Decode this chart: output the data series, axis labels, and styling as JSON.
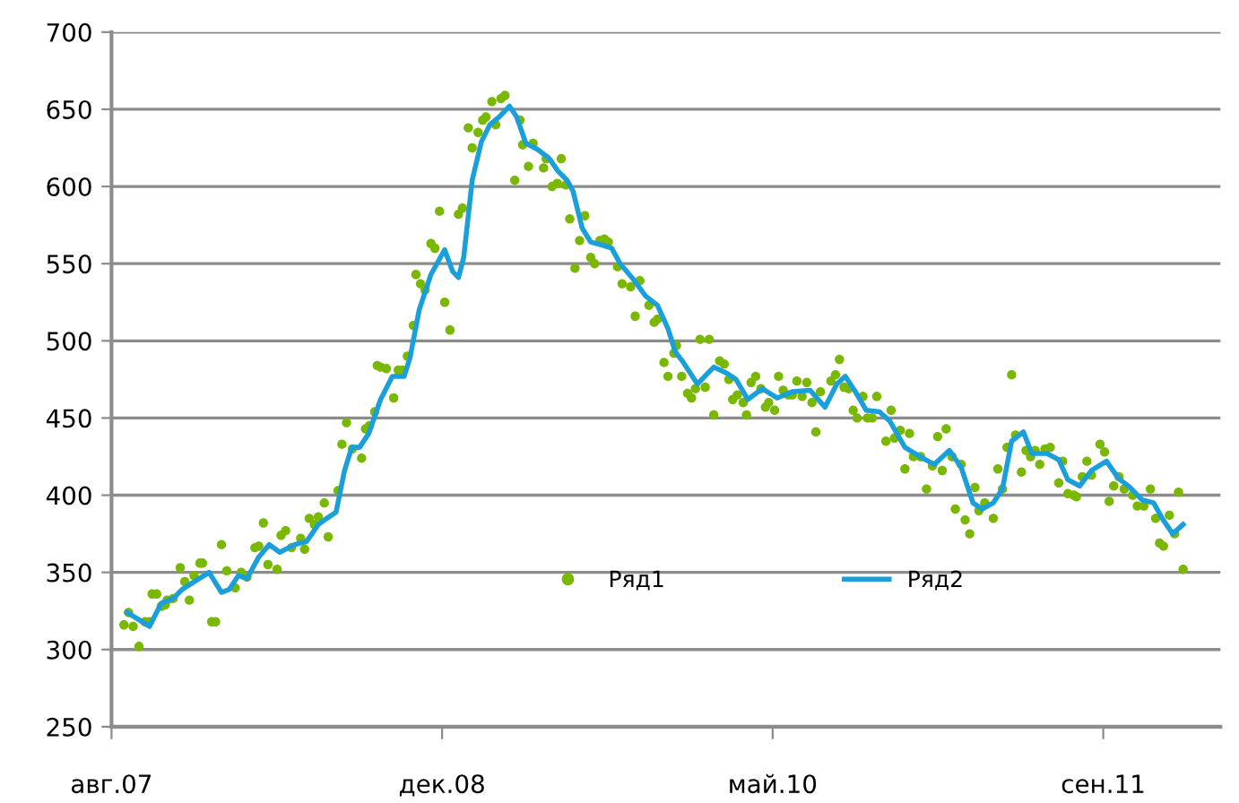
{
  "chart_data": {
    "type": "scatter",
    "xlim": [
      "2007-08-05",
      "2012-03-25"
    ],
    "xticks": [
      {
        "value": "2007-08-05",
        "label": "авг.07"
      },
      {
        "value": "2008-12-22",
        "label": "дек.08"
      },
      {
        "value": "2010-05-11",
        "label": "май.10"
      },
      {
        "value": "2011-09-28",
        "label": "сен.11"
      }
    ],
    "ylim": [
      250,
      700
    ],
    "yticks": [
      250,
      300,
      350,
      400,
      450,
      500,
      550,
      600,
      650,
      700
    ],
    "grid": "y",
    "legend": "bottom",
    "series": [
      {
        "name": "Ряд1",
        "marker": "circle",
        "color": "#7ab800",
        "x": [
          "2007-08-24",
          "2007-08-31",
          "2007-09-07",
          "2007-09-16",
          "2007-09-25",
          "2007-10-02",
          "2007-10-06",
          "2007-10-13",
          "2007-10-20",
          "2007-10-26",
          "2007-10-29",
          "2007-11-07",
          "2007-11-18",
          "2007-11-25",
          "2007-12-02",
          "2007-12-09",
          "2007-12-18",
          "2007-12-22",
          "2008-01-05",
          "2008-01-11",
          "2008-01-20",
          "2008-01-28",
          "2008-02-10",
          "2008-02-19",
          "2008-02-28",
          "2008-03-11",
          "2008-03-17",
          "2008-03-24",
          "2008-03-31",
          "2008-04-14",
          "2008-04-20",
          "2008-04-27",
          "2008-05-06",
          "2008-05-20",
          "2008-05-26",
          "2008-06-02",
          "2008-06-10",
          "2008-06-16",
          "2008-06-25",
          "2008-07-01",
          "2008-07-16",
          "2008-07-22",
          "2008-07-29",
          "2008-08-07",
          "2008-08-21",
          "2008-08-27",
          "2008-09-02",
          "2008-09-10",
          "2008-09-14",
          "2008-09-19",
          "2008-09-28",
          "2008-10-09",
          "2008-10-16",
          "2008-10-23",
          "2008-10-30",
          "2008-11-08",
          "2008-11-12",
          "2008-11-19",
          "2008-11-26",
          "2008-12-05",
          "2008-12-11",
          "2008-12-18",
          "2008-12-26",
          "2009-01-03",
          "2009-01-16",
          "2009-01-22",
          "2009-01-31",
          "2009-02-06",
          "2009-02-15",
          "2009-02-22",
          "2009-02-27",
          "2009-03-08",
          "2009-03-14",
          "2009-03-22",
          "2009-03-28",
          "2009-04-12",
          "2009-04-20",
          "2009-04-24",
          "2009-05-03",
          "2009-05-10",
          "2009-05-26",
          "2009-05-30",
          "2009-06-08",
          "2009-06-16",
          "2009-06-22",
          "2009-06-29",
          "2009-07-05",
          "2009-07-13",
          "2009-07-20",
          "2009-07-28",
          "2009-08-06",
          "2009-08-12",
          "2009-08-20",
          "2009-08-27",
          "2009-09-02",
          "2009-09-16",
          "2009-09-23",
          "2009-10-06",
          "2009-10-13",
          "2009-10-20",
          "2009-11-03",
          "2009-11-11",
          "2009-11-16",
          "2009-11-26",
          "2009-12-02",
          "2009-12-11",
          "2009-12-15",
          "2009-12-23",
          "2010-01-01",
          "2010-01-07",
          "2010-01-13",
          "2010-01-20",
          "2010-01-28",
          "2010-02-03",
          "2010-02-10",
          "2010-02-19",
          "2010-02-26",
          "2010-03-05",
          "2010-03-11",
          "2010-03-18",
          "2010-03-27",
          "2010-04-01",
          "2010-04-08",
          "2010-04-15",
          "2010-04-23",
          "2010-04-30",
          "2010-05-05",
          "2010-05-14",
          "2010-05-20",
          "2010-05-27",
          "2010-06-04",
          "2010-06-10",
          "2010-06-17",
          "2010-06-25",
          "2010-07-02",
          "2010-07-10",
          "2010-07-16",
          "2010-07-23",
          "2010-08-08",
          "2010-08-15",
          "2010-08-21",
          "2010-08-28",
          "2010-09-04",
          "2010-09-11",
          "2010-09-17",
          "2010-09-26",
          "2010-10-03",
          "2010-10-10",
          "2010-10-17",
          "2010-10-31",
          "2010-11-08",
          "2010-11-13",
          "2010-11-22",
          "2010-11-29",
          "2010-12-06",
          "2010-12-12",
          "2010-12-23",
          "2011-01-01",
          "2011-01-10",
          "2011-01-18",
          "2011-01-25",
          "2011-01-31",
          "2011-02-09",
          "2011-02-14",
          "2011-02-23",
          "2011-03-01",
          "2011-03-08",
          "2011-03-16",
          "2011-03-22",
          "2011-03-31",
          "2011-04-13",
          "2011-04-20",
          "2011-04-27",
          "2011-05-04",
          "2011-05-11",
          "2011-05-17",
          "2011-05-26",
          "2011-06-02",
          "2011-06-09",
          "2011-06-16",
          "2011-06-23",
          "2011-07-01",
          "2011-07-09",
          "2011-07-22",
          "2011-07-28",
          "2011-08-05",
          "2011-08-14",
          "2011-08-18",
          "2011-08-27",
          "2011-09-03",
          "2011-09-10",
          "2011-09-23",
          "2011-09-30",
          "2011-10-07",
          "2011-10-14",
          "2011-10-22",
          "2011-10-30",
          "2011-11-12",
          "2011-11-19",
          "2011-11-29",
          "2011-12-09",
          "2011-12-17",
          "2011-12-23",
          "2011-12-29",
          "2012-01-07",
          "2012-01-15",
          "2012-01-21",
          "2012-01-28"
        ],
        "values": [
          316,
          324,
          315,
          302,
          318,
          318,
          336,
          336,
          328,
          329,
          332,
          333,
          353,
          344,
          332,
          348,
          356,
          356,
          318,
          318,
          368,
          351,
          340,
          350,
          347,
          366,
          367,
          382,
          355,
          352,
          374,
          377,
          366,
          372,
          365,
          385,
          381,
          386,
          395,
          373,
          403,
          433,
          447,
          430,
          424,
          443,
          445,
          454,
          484,
          483,
          482,
          463,
          481,
          481,
          490,
          510,
          543,
          537,
          533,
          563,
          560,
          584,
          525,
          507,
          582,
          586,
          638,
          625,
          635,
          643,
          645,
          655,
          640,
          657,
          659,
          604,
          643,
          627,
          613,
          628,
          612,
          618,
          600,
          602,
          618,
          601,
          579,
          547,
          565,
          581,
          554,
          550,
          565,
          566,
          564,
          548,
          537,
          535,
          516,
          539,
          523,
          512,
          514,
          486,
          477,
          492,
          497,
          477,
          466,
          463,
          469,
          501,
          470,
          501,
          452,
          487,
          485,
          475,
          462,
          465,
          460,
          452,
          473,
          477,
          469,
          457,
          460,
          455,
          477,
          468,
          465,
          465,
          474,
          464,
          473,
          460,
          441,
          467,
          474,
          478,
          488,
          470,
          469,
          455,
          450,
          464,
          450,
          450,
          464,
          435,
          455,
          437,
          442,
          417,
          440,
          425,
          425,
          404,
          419,
          438,
          416,
          443,
          425,
          391,
          420,
          384,
          375,
          405,
          390,
          395,
          385,
          417,
          404,
          431,
          478,
          439,
          415,
          429,
          425,
          429,
          420,
          430,
          431,
          408,
          422,
          401,
          400,
          399,
          412,
          422,
          413,
          433,
          428,
          396,
          406,
          412,
          404,
          400,
          393,
          393,
          404,
          385,
          369,
          367,
          387,
          375,
          402,
          352
        ]
      },
      {
        "name": "Ряд2",
        "type": "line",
        "marker": "none",
        "line_style": "solid",
        "color": "#1a9fdb",
        "x": [
          "2007-08-29",
          "2007-10-02",
          "2007-10-20",
          "2007-11-07",
          "2007-11-21",
          "2008-01-01",
          "2008-01-20",
          "2008-02-01",
          "2008-02-15",
          "2008-02-28",
          "2008-03-17",
          "2008-04-02",
          "2008-04-18",
          "2008-05-11",
          "2008-05-29",
          "2008-06-16",
          "2008-06-29",
          "2008-07-13",
          "2008-07-26",
          "2008-08-06",
          "2008-08-18",
          "2008-09-01",
          "2008-09-19",
          "2008-10-07",
          "2008-10-25",
          "2008-11-03",
          "2008-11-17",
          "2008-12-05",
          "2008-12-26",
          "2009-01-07",
          "2009-01-16",
          "2009-01-24",
          "2009-02-06",
          "2009-02-20",
          "2009-03-05",
          "2009-03-19",
          "2009-04-04",
          "2009-04-15",
          "2009-04-29",
          "2009-05-17",
          "2009-06-04",
          "2009-06-17",
          "2009-07-01",
          "2009-07-10",
          "2009-07-24",
          "2009-08-06",
          "2009-08-24",
          "2009-09-07",
          "2009-09-20",
          "2009-10-08",
          "2009-10-29",
          "2009-11-16",
          "2009-12-02",
          "2009-12-13",
          "2009-12-24",
          "2010-01-16",
          "2010-02-10",
          "2010-03-02",
          "2010-03-16",
          "2010-04-03",
          "2010-04-25",
          "2010-05-18",
          "2010-06-10",
          "2010-07-07",
          "2010-07-30",
          "2010-08-17",
          "2010-08-30",
          "2010-09-13",
          "2010-10-01",
          "2010-10-21",
          "2010-11-06",
          "2010-11-29",
          "2010-12-26",
          "2011-01-13",
          "2011-02-05",
          "2011-02-23",
          "2011-03-13",
          "2011-03-27",
          "2011-04-13",
          "2011-04-27",
          "2011-05-11",
          "2011-05-29",
          "2011-06-11",
          "2011-07-04",
          "2011-07-22",
          "2011-08-05",
          "2011-08-23",
          "2011-09-10",
          "2011-10-03",
          "2011-10-21",
          "2011-11-08",
          "2011-11-26",
          "2011-12-14",
          "2011-12-27",
          "2012-01-12",
          "2012-01-28"
        ],
        "values": [
          324,
          315,
          330,
          333,
          339,
          350,
          337,
          339,
          348,
          346,
          360,
          368,
          363,
          368,
          370,
          381,
          385,
          389,
          416,
          431,
          431,
          440,
          462,
          477,
          477,
          489,
          520,
          543,
          559,
          545,
          541,
          554,
          604,
          629,
          640,
          645,
          652,
          645,
          628,
          624,
          618,
          610,
          604,
          597,
          573,
          564,
          562,
          560,
          550,
          541,
          529,
          523,
          508,
          493,
          487,
          472,
          483,
          479,
          475,
          462,
          469,
          463,
          467,
          468,
          457,
          472,
          477,
          468,
          455,
          454,
          448,
          431,
          424,
          420,
          429,
          418,
          395,
          391,
          395,
          404,
          435,
          441,
          427,
          427,
          423,
          410,
          406,
          416,
          422,
          411,
          405,
          397,
          395,
          385,
          375,
          381
        ]
      }
    ]
  }
}
